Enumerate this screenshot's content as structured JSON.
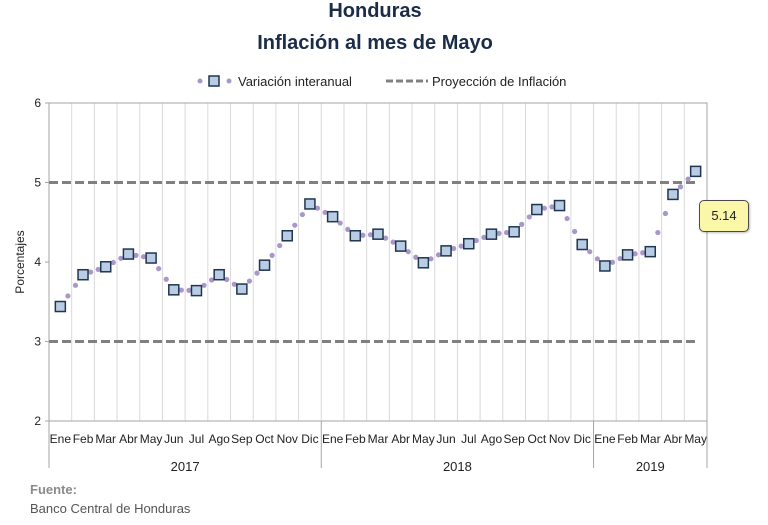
{
  "title": "Honduras",
  "subtitle": "Inflación al mes de Mayo",
  "legend": {
    "series_label": "Variación interanual",
    "projection_label": "Proyección de Inflación"
  },
  "source": {
    "label": "Fuente:",
    "text": "Banco Central de Honduras"
  },
  "colors": {
    "title": "#1a2c47",
    "dots": "#a897c8",
    "marker_fill": "#b8cce4",
    "marker_stroke": "#1f3550",
    "projection": "#808080",
    "callout": "#fbf7a8"
  },
  "chart_data": {
    "type": "line",
    "ylabel": "Porcentajes",
    "ylim": [
      2,
      6
    ],
    "yticks": [
      2,
      3,
      4,
      5,
      6
    ],
    "grid": "vertical",
    "legend_position": "top",
    "year_groups": [
      {
        "year": "2017",
        "months": 12
      },
      {
        "year": "2018",
        "months": 12
      },
      {
        "year": "2019",
        "months": 5
      }
    ],
    "categories": [
      "Ene",
      "Feb",
      "Mar",
      "Abr",
      "May",
      "Jun",
      "Jul",
      "Ago",
      "Sep",
      "Oct",
      "Nov",
      "Dic",
      "Ene",
      "Feb",
      "Mar",
      "Abr",
      "May",
      "Jun",
      "Jul",
      "Ago",
      "Sep",
      "Oct",
      "Nov",
      "Dic",
      "Ene",
      "Feb",
      "Mar",
      "Abr",
      "May"
    ],
    "series": [
      {
        "name": "Variación interanual",
        "values": [
          3.44,
          3.84,
          3.94,
          4.1,
          4.05,
          3.65,
          3.64,
          3.84,
          3.66,
          3.96,
          4.33,
          4.73,
          4.57,
          4.33,
          4.35,
          4.2,
          3.99,
          4.14,
          4.23,
          4.35,
          4.38,
          4.66,
          4.71,
          4.22,
          3.95,
          4.09,
          4.13,
          4.85,
          5.14
        ]
      },
      {
        "name": "Proyección de Inflación",
        "band": [
          3,
          5
        ]
      }
    ],
    "last_value_label": "5.14"
  }
}
